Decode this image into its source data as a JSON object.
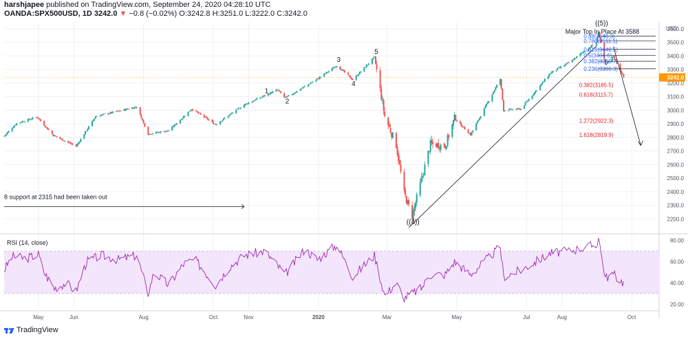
{
  "header": {
    "publisher": "harshjapee",
    "published_text": "published on TradingView.com, September 24, 2020 04:28:10 UTC",
    "symbol": "OANDA:SPX500USD, 1D",
    "price": "3242.0",
    "change_arrow": "▼",
    "change": "−0.8 (−0.02%)",
    "ohlc": "O:3242.8 H:3251.0 L:3222.0 C:3242.0"
  },
  "footer": {
    "brand": "TradingView"
  },
  "chart_data": [
    {
      "type": "candlestick",
      "currency_label": "USD",
      "ylim": [
        2100,
        3650
      ],
      "y_ticks": [
        "3600.0",
        "3500.0",
        "3400.0",
        "3300.0",
        "3200.0",
        "3100.0",
        "3000.0",
        "2900.0",
        "2800.0",
        "2700.0",
        "2600.0",
        "2500.0",
        "2400.0",
        "2300.0",
        "2200.0"
      ],
      "last_price_label": "3242.0",
      "x_ticks": [
        {
          "label": "May",
          "date": "2019-05-01"
        },
        {
          "label": "Jun",
          "date": "2019-06-01"
        },
        {
          "label": "Aug",
          "date": "2019-08-01"
        },
        {
          "label": "Oct",
          "date": "2019-10-01"
        },
        {
          "label": "Nov",
          "date": "2019-11-01"
        },
        {
          "label": "2020",
          "date": "2020-01-01"
        },
        {
          "label": "Mar",
          "date": "2020-03-01"
        },
        {
          "label": "May",
          "date": "2020-05-01"
        },
        {
          "label": "Jul",
          "date": "2020-07-01"
        },
        {
          "label": "Aug",
          "date": "2020-08-01"
        },
        {
          "label": "Oct",
          "date": "2020-10-01"
        }
      ],
      "price_path": [
        [
          "2019-04-01",
          2810
        ],
        [
          "2019-04-12",
          2905
        ],
        [
          "2019-04-30",
          2950
        ],
        [
          "2019-05-14",
          2815
        ],
        [
          "2019-06-03",
          2735
        ],
        [
          "2019-06-20",
          2955
        ],
        [
          "2019-07-26",
          3025
        ],
        [
          "2019-08-05",
          2825
        ],
        [
          "2019-08-23",
          2850
        ],
        [
          "2019-09-12",
          3010
        ],
        [
          "2019-10-03",
          2895
        ],
        [
          "2019-10-28",
          3040
        ],
        [
          "2019-11-26",
          3150
        ],
        [
          "2019-12-03",
          3090
        ],
        [
          "2019-12-31",
          3230
        ],
        [
          "2020-01-17",
          3330
        ],
        [
          "2020-01-31",
          3225
        ],
        [
          "2020-02-19",
          3390
        ],
        [
          "2020-02-28",
          2955
        ],
        [
          "2020-03-09",
          2745
        ],
        [
          "2020-03-16",
          2385
        ],
        [
          "2020-03-23",
          2220
        ],
        [
          "2020-04-08",
          2750
        ],
        [
          "2020-04-21",
          2740
        ],
        [
          "2020-04-29",
          2940
        ],
        [
          "2020-05-13",
          2820
        ],
        [
          "2020-06-08",
          3230
        ],
        [
          "2020-06-11",
          3000
        ],
        [
          "2020-06-26",
          3010
        ],
        [
          "2020-07-22",
          3275
        ],
        [
          "2020-08-07",
          3350
        ],
        [
          "2020-08-31",
          3500
        ],
        [
          "2020-09-02",
          3580
        ],
        [
          "2020-09-08",
          3330
        ],
        [
          "2020-09-15",
          3400
        ],
        [
          "2020-09-24",
          3242
        ]
      ],
      "annotations": [
        {
          "text": "Major Top In Place At 3588",
          "date": "2020-08-04",
          "price": 3565
        },
        {
          "text": "((5))",
          "date": "2020-08-30",
          "price": 3625
        },
        {
          "text": "((4))",
          "date": "2020-03-18",
          "price": 2160
        },
        {
          "text": "1",
          "date": "2019-11-15",
          "price": 3125
        },
        {
          "text": "2",
          "date": "2019-12-03",
          "price": 3050
        },
        {
          "text": "3",
          "date": "2020-01-17",
          "price": 3355
        },
        {
          "text": "4",
          "date": "2020-01-30",
          "price": 3180
        },
        {
          "text": "5",
          "date": "2020-02-19",
          "price": 3415
        },
        {
          "text": "8 support at 2315 had been taken out",
          "date": "2019-04-01",
          "price": 2345
        }
      ],
      "fib_blue": [
        {
          "label": "0.88(3546.3)",
          "price": 3546.3
        },
        {
          "label": "0.786(3511.1)",
          "price": 3511.1
        },
        {
          "label": "0.618(3448.5)",
          "price": 3448.5
        },
        {
          "label": "0.5(3404.6)",
          "price": 3404.6
        },
        {
          "label": "0.382(3360.7)",
          "price": 3360.7
        },
        {
          "label": "0.236(3306.3)",
          "price": 3306.3
        }
      ],
      "fib_red": [
        {
          "label": "0.382(3185.5)",
          "price": 3185.5
        },
        {
          "label": "0.618(3115.7)",
          "price": 3115.7
        },
        {
          "label": "1.272(2922.3)",
          "price": 2922.3
        },
        {
          "label": "1.618(2819.9)",
          "price": 2819.9
        }
      ],
      "colors": {
        "up": "#26a69a",
        "down": "#ef5350",
        "grid": "#eef0f3",
        "fib_blue": "#2962ff",
        "fib_red": "#e91e1e",
        "last_price": "#ff9800",
        "text": "#131722"
      }
    },
    {
      "type": "line",
      "title": "RSI (14, close)",
      "ylim": [
        15,
        85
      ],
      "y_ticks": [
        80,
        60,
        40,
        20
      ],
      "y_tick_labels": [
        "80.00",
        "60.00",
        "40.00",
        "20.00"
      ],
      "band": [
        30,
        70
      ],
      "values_path": [
        [
          "2019-04-01",
          52
        ],
        [
          "2019-04-08",
          65
        ],
        [
          "2019-04-20",
          63
        ],
        [
          "2019-05-01",
          67
        ],
        [
          "2019-05-06",
          50
        ],
        [
          "2019-05-15",
          35
        ],
        [
          "2019-05-25",
          40
        ],
        [
          "2019-06-03",
          32
        ],
        [
          "2019-06-12",
          60
        ],
        [
          "2019-06-25",
          66
        ],
        [
          "2019-07-10",
          62
        ],
        [
          "2019-07-26",
          66
        ],
        [
          "2019-08-05",
          30
        ],
        [
          "2019-08-10",
          50
        ],
        [
          "2019-08-23",
          38
        ],
        [
          "2019-09-05",
          58
        ],
        [
          "2019-09-15",
          62
        ],
        [
          "2019-10-03",
          38
        ],
        [
          "2019-10-15",
          55
        ],
        [
          "2019-10-28",
          66
        ],
        [
          "2019-11-15",
          70
        ],
        [
          "2019-12-03",
          48
        ],
        [
          "2019-12-20",
          72
        ],
        [
          "2019-12-31",
          62
        ],
        [
          "2020-01-17",
          76
        ],
        [
          "2020-01-31",
          46
        ],
        [
          "2020-02-19",
          66
        ],
        [
          "2020-02-28",
          28
        ],
        [
          "2020-03-09",
          40
        ],
        [
          "2020-03-16",
          26
        ],
        [
          "2020-03-23",
          30
        ],
        [
          "2020-03-31",
          35
        ],
        [
          "2020-04-08",
          48
        ],
        [
          "2020-04-21",
          48
        ],
        [
          "2020-04-29",
          60
        ],
        [
          "2020-05-13",
          48
        ],
        [
          "2020-06-08",
          74
        ],
        [
          "2020-06-11",
          46
        ],
        [
          "2020-06-26",
          52
        ],
        [
          "2020-07-22",
          68
        ],
        [
          "2020-08-07",
          70
        ],
        [
          "2020-08-31",
          76
        ],
        [
          "2020-09-02",
          83
        ],
        [
          "2020-09-08",
          45
        ],
        [
          "2020-09-15",
          48
        ],
        [
          "2020-09-24",
          40
        ]
      ],
      "colors": {
        "line": "#9c27b0",
        "band_fill": "#f3e5fb",
        "band_border": "#bdbdbd"
      }
    }
  ]
}
